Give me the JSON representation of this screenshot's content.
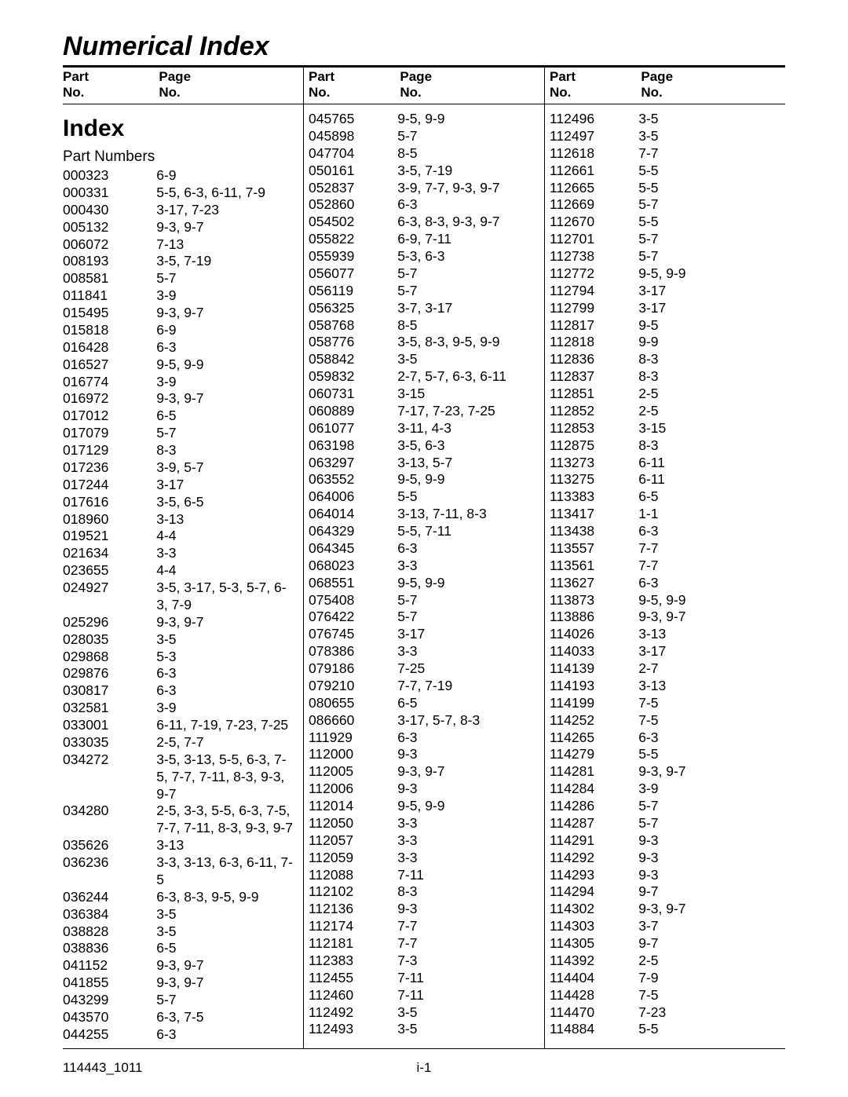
{
  "title": "Numerical Index",
  "header": {
    "partLabel": "Part",
    "partSub": "No.",
    "pageLabel": "Page",
    "pageSub": "No."
  },
  "indexHeading": "Index",
  "partNumbersLabel": "Part Numbers",
  "footer": {
    "left": "114443_1011",
    "center": "i-1"
  },
  "columns": [
    [
      {
        "part": "000323",
        "pages": "6-9"
      },
      {
        "part": "000331",
        "pages": "5-5, 6-3, 6-11, 7-9"
      },
      {
        "part": "000430",
        "pages": "3-17, 7-23"
      },
      {
        "part": "005132",
        "pages": "9-3, 9-7"
      },
      {
        "part": "006072",
        "pages": "7-13"
      },
      {
        "part": "008193",
        "pages": "3-5, 7-19"
      },
      {
        "part": "008581",
        "pages": "5-7"
      },
      {
        "part": "011841",
        "pages": "3-9"
      },
      {
        "part": "015495",
        "pages": "9-3, 9-7"
      },
      {
        "part": "015818",
        "pages": "6-9"
      },
      {
        "part": "016428",
        "pages": "6-3"
      },
      {
        "part": "016527",
        "pages": "9-5, 9-9"
      },
      {
        "part": "016774",
        "pages": "3-9"
      },
      {
        "part": "016972",
        "pages": "9-3, 9-7"
      },
      {
        "part": "017012",
        "pages": "6-5"
      },
      {
        "part": "017079",
        "pages": "5-7"
      },
      {
        "part": "017129",
        "pages": "8-3"
      },
      {
        "part": "017236",
        "pages": "3-9, 5-7"
      },
      {
        "part": "017244",
        "pages": "3-17"
      },
      {
        "part": "017616",
        "pages": "3-5, 6-5"
      },
      {
        "part": "018960",
        "pages": "3-13"
      },
      {
        "part": "019521",
        "pages": "4-4"
      },
      {
        "part": "021634",
        "pages": "3-3"
      },
      {
        "part": "023655",
        "pages": "4-4"
      },
      {
        "part": "024927",
        "pages": "3-5, 3-17, 5-3, 5-7, 6-3, 7-9"
      },
      {
        "part": "025296",
        "pages": "9-3, 9-7"
      },
      {
        "part": "028035",
        "pages": "3-5"
      },
      {
        "part": "029868",
        "pages": "5-3"
      },
      {
        "part": "029876",
        "pages": "6-3"
      },
      {
        "part": "030817",
        "pages": "6-3"
      },
      {
        "part": "032581",
        "pages": "3-9"
      },
      {
        "part": "033001",
        "pages": "6-11, 7-19, 7-23, 7-25"
      },
      {
        "part": "033035",
        "pages": "2-5, 7-7"
      },
      {
        "part": "034272",
        "pages": "3-5, 3-13, 5-5, 6-3, 7-5, 7-7, 7-11, 8-3, 9-3, 9-7"
      },
      {
        "part": "034280",
        "pages": "2-5, 3-3, 5-5, 6-3, 7-5, 7-7, 7-11, 8-3, 9-3, 9-7"
      },
      {
        "part": "035626",
        "pages": "3-13"
      },
      {
        "part": "036236",
        "pages": "3-3, 3-13, 6-3, 6-11, 7-5"
      },
      {
        "part": "036244",
        "pages": "6-3, 8-3, 9-5, 9-9"
      },
      {
        "part": "036384",
        "pages": "3-5"
      },
      {
        "part": "038828",
        "pages": "3-5"
      },
      {
        "part": "038836",
        "pages": "6-5"
      },
      {
        "part": "041152",
        "pages": "9-3, 9-7"
      },
      {
        "part": "041855",
        "pages": "9-3, 9-7"
      },
      {
        "part": "043299",
        "pages": "5-7"
      },
      {
        "part": "043570",
        "pages": "6-3, 7-5"
      },
      {
        "part": "044255",
        "pages": "6-3"
      }
    ],
    [
      {
        "part": "045765",
        "pages": "9-5, 9-9"
      },
      {
        "part": "045898",
        "pages": "5-7"
      },
      {
        "part": "047704",
        "pages": "8-5"
      },
      {
        "part": "050161",
        "pages": "3-5, 7-19"
      },
      {
        "part": "052837",
        "pages": "3-9, 7-7, 9-3, 9-7"
      },
      {
        "part": "052860",
        "pages": "6-3"
      },
      {
        "part": "054502",
        "pages": "6-3, 8-3, 9-3, 9-7"
      },
      {
        "part": "055822",
        "pages": "6-9, 7-11"
      },
      {
        "part": "055939",
        "pages": "5-3, 6-3"
      },
      {
        "part": "056077",
        "pages": "5-7"
      },
      {
        "part": "056119",
        "pages": "5-7"
      },
      {
        "part": "056325",
        "pages": "3-7, 3-17"
      },
      {
        "part": "058768",
        "pages": "8-5"
      },
      {
        "part": "058776",
        "pages": "3-5, 8-3, 9-5, 9-9"
      },
      {
        "part": "058842",
        "pages": "3-5"
      },
      {
        "part": "059832",
        "pages": "2-7, 5-7, 6-3, 6-11"
      },
      {
        "part": "060731",
        "pages": "3-15"
      },
      {
        "part": "060889",
        "pages": "7-17, 7-23, 7-25"
      },
      {
        "part": "061077",
        "pages": "3-11, 4-3"
      },
      {
        "part": "063198",
        "pages": "3-5, 6-3"
      },
      {
        "part": "063297",
        "pages": "3-13, 5-7"
      },
      {
        "part": "063552",
        "pages": "9-5, 9-9"
      },
      {
        "part": "064006",
        "pages": "5-5"
      },
      {
        "part": "064014",
        "pages": "3-13, 7-11, 8-3"
      },
      {
        "part": "064329",
        "pages": "5-5, 7-11"
      },
      {
        "part": "064345",
        "pages": "6-3"
      },
      {
        "part": "068023",
        "pages": "3-3"
      },
      {
        "part": "068551",
        "pages": "9-5, 9-9"
      },
      {
        "part": "075408",
        "pages": "5-7"
      },
      {
        "part": "076422",
        "pages": "5-7"
      },
      {
        "part": "076745",
        "pages": "3-17"
      },
      {
        "part": "078386",
        "pages": "3-3"
      },
      {
        "part": "079186",
        "pages": "7-25"
      },
      {
        "part": "079210",
        "pages": "7-7, 7-19"
      },
      {
        "part": "080655",
        "pages": "6-5"
      },
      {
        "part": "086660",
        "pages": "3-17, 5-7, 8-3"
      },
      {
        "part": "111929",
        "pages": "6-3"
      },
      {
        "part": "112000",
        "pages": "9-3"
      },
      {
        "part": "112005",
        "pages": "9-3, 9-7"
      },
      {
        "part": "112006",
        "pages": "9-3"
      },
      {
        "part": "112014",
        "pages": "9-5, 9-9"
      },
      {
        "part": "112050",
        "pages": "3-3"
      },
      {
        "part": "112057",
        "pages": "3-3"
      },
      {
        "part": "112059",
        "pages": "3-3"
      },
      {
        "part": "112088",
        "pages": "7-11"
      },
      {
        "part": "112102",
        "pages": "8-3"
      },
      {
        "part": "112136",
        "pages": "9-3"
      },
      {
        "part": "112174",
        "pages": "7-7"
      },
      {
        "part": "112181",
        "pages": "7-7"
      },
      {
        "part": "112383",
        "pages": "7-3"
      },
      {
        "part": "112455",
        "pages": "7-11"
      },
      {
        "part": "112460",
        "pages": "7-11"
      },
      {
        "part": "112492",
        "pages": "3-5"
      },
      {
        "part": "112493",
        "pages": "3-5"
      }
    ],
    [
      {
        "part": "112496",
        "pages": "3-5"
      },
      {
        "part": "112497",
        "pages": "3-5"
      },
      {
        "part": "112618",
        "pages": "7-7"
      },
      {
        "part": "112661",
        "pages": "5-5"
      },
      {
        "part": "112665",
        "pages": "5-5"
      },
      {
        "part": "112669",
        "pages": "5-7"
      },
      {
        "part": "112670",
        "pages": "5-5"
      },
      {
        "part": "112701",
        "pages": "5-7"
      },
      {
        "part": "112738",
        "pages": "5-7"
      },
      {
        "part": "112772",
        "pages": "9-5, 9-9"
      },
      {
        "part": "112794",
        "pages": "3-17"
      },
      {
        "part": "112799",
        "pages": "3-17"
      },
      {
        "part": "112817",
        "pages": "9-5"
      },
      {
        "part": "112818",
        "pages": "9-9"
      },
      {
        "part": "112836",
        "pages": "8-3"
      },
      {
        "part": "112837",
        "pages": "8-3"
      },
      {
        "part": "112851",
        "pages": "2-5"
      },
      {
        "part": "112852",
        "pages": "2-5"
      },
      {
        "part": "112853",
        "pages": "3-15"
      },
      {
        "part": "112875",
        "pages": "8-3"
      },
      {
        "part": "113273",
        "pages": "6-11"
      },
      {
        "part": "113275",
        "pages": "6-11"
      },
      {
        "part": "113383",
        "pages": "6-5"
      },
      {
        "part": "113417",
        "pages": "1-1"
      },
      {
        "part": "113438",
        "pages": "6-3"
      },
      {
        "part": "113557",
        "pages": "7-7"
      },
      {
        "part": "113561",
        "pages": "7-7"
      },
      {
        "part": "113627",
        "pages": "6-3"
      },
      {
        "part": "113873",
        "pages": "9-5, 9-9"
      },
      {
        "part": "113886",
        "pages": "9-3, 9-7"
      },
      {
        "part": "114026",
        "pages": "3-13"
      },
      {
        "part": "114033",
        "pages": "3-17"
      },
      {
        "part": "114139",
        "pages": "2-7"
      },
      {
        "part": "114193",
        "pages": "3-13"
      },
      {
        "part": "114199",
        "pages": "7-5"
      },
      {
        "part": "114252",
        "pages": "7-5"
      },
      {
        "part": "114265",
        "pages": "6-3"
      },
      {
        "part": "114279",
        "pages": "5-5"
      },
      {
        "part": "114281",
        "pages": "9-3, 9-7"
      },
      {
        "part": "114284",
        "pages": "3-9"
      },
      {
        "part": "114286",
        "pages": "5-7"
      },
      {
        "part": "114287",
        "pages": "5-7"
      },
      {
        "part": "114291",
        "pages": "9-3"
      },
      {
        "part": "114292",
        "pages": "9-3"
      },
      {
        "part": "114293",
        "pages": "9-3"
      },
      {
        "part": "114294",
        "pages": "9-7"
      },
      {
        "part": "114302",
        "pages": "9-3, 9-7"
      },
      {
        "part": "114303",
        "pages": "3-7"
      },
      {
        "part": "114305",
        "pages": "9-7"
      },
      {
        "part": "114392",
        "pages": "2-5"
      },
      {
        "part": "114404",
        "pages": "7-9"
      },
      {
        "part": "114428",
        "pages": "7-5"
      },
      {
        "part": "114470",
        "pages": "7-23"
      },
      {
        "part": "114884",
        "pages": "5-5"
      }
    ]
  ]
}
